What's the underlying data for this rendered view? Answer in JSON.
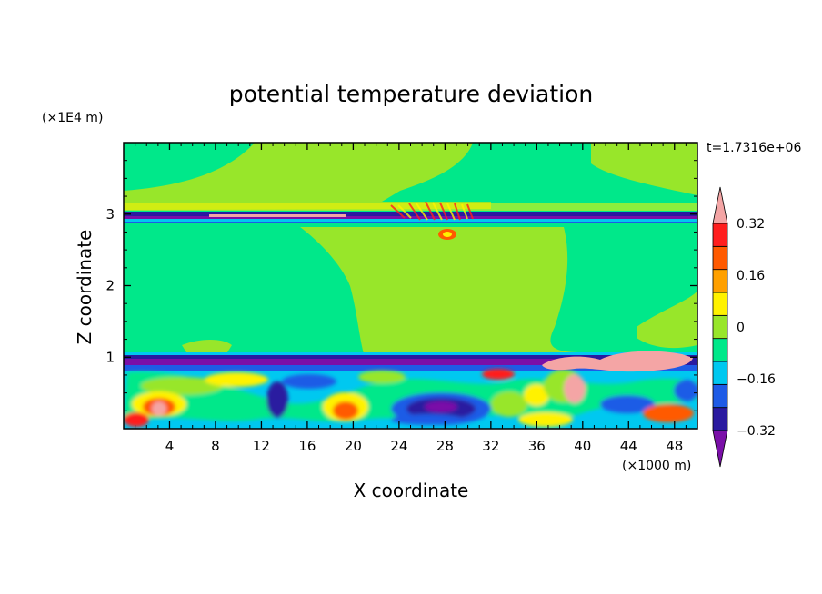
{
  "chart_data": {
    "type": "heatmap",
    "title": "potential temperature deviation",
    "xlabel": "X coordinate",
    "ylabel": "Z coordinate",
    "x_unit": "(×1000 m)",
    "y_unit": "(×1E4 m)",
    "time_label": "t=1.7316e+06",
    "xlim": [
      0,
      50
    ],
    "ylim": [
      0,
      4
    ],
    "x_ticks": [
      4,
      8,
      12,
      16,
      20,
      24,
      28,
      32,
      36,
      40,
      44,
      48
    ],
    "x_tick_labels": [
      "4",
      "8",
      "12",
      "16",
      "20",
      "24",
      "28",
      "32",
      "36",
      "40",
      "44",
      "48"
    ],
    "y_ticks": [
      1,
      2,
      3
    ],
    "y_tick_labels": [
      "1",
      "2",
      "3"
    ],
    "colorbar": {
      "levels": [
        -0.4,
        -0.32,
        -0.24,
        -0.16,
        -0.08,
        0,
        0.08,
        0.16,
        0.24,
        0.32,
        0.4
      ],
      "labels": [
        "0.32",
        "0.16",
        "0",
        "−0.16",
        "−0.32"
      ],
      "label_values": [
        0.32,
        0.16,
        0,
        -0.16,
        -0.32
      ],
      "colors": [
        "#7a0fa8",
        "#2a1aa0",
        "#1e5be6",
        "#00c8f0",
        "#00e88a",
        "#98e62a",
        "#fff200",
        "#ffa000",
        "#ff5a00",
        "#ff1e1e",
        "#f4a5a5"
      ]
    }
  }
}
